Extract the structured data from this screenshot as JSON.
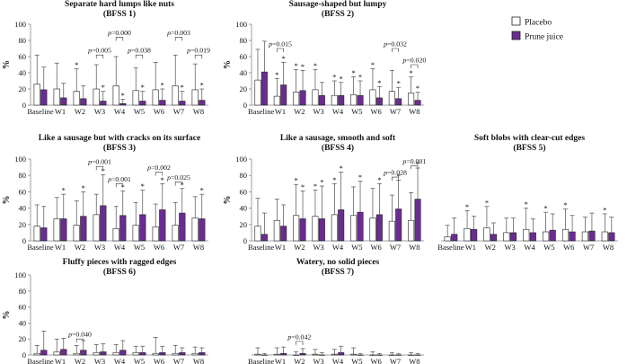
{
  "legend": {
    "placebo": "Placebo",
    "prune": "Prune juice"
  },
  "colors": {
    "placebo": "#ffffff",
    "prune": "#6b2c91",
    "stroke": "#222222",
    "axis": "#888888"
  },
  "chart_data": [
    {
      "type": "bar",
      "title": [
        "Separate hard lumps like nuts",
        "(BFSS 1)"
      ],
      "ylabel": "%",
      "ylim": [
        0,
        100
      ],
      "yticks": [
        0,
        20,
        40,
        60,
        80,
        100
      ],
      "categories": [
        "Baseline",
        "W1",
        "W2",
        "W3",
        "W4",
        "W5",
        "W6",
        "W7",
        "W8"
      ],
      "series": [
        {
          "name": "Placebo",
          "values": [
            26,
            20,
            17,
            20,
            24,
            18,
            19,
            24,
            19
          ],
          "errors": [
            36,
            32,
            28,
            30,
            36,
            28,
            34,
            38,
            32
          ]
        },
        {
          "name": "Prune juice",
          "values": [
            19,
            9,
            8,
            5,
            2,
            5,
            6,
            5,
            6
          ],
          "errors": [
            28,
            18,
            16,
            12,
            5,
            12,
            14,
            12,
            14
          ]
        }
      ],
      "stars": [
        {
          "index": 2,
          "series": 0
        },
        {
          "index": 3,
          "series": 1
        },
        {
          "index": 4,
          "series": 1
        },
        {
          "index": 5,
          "series": 1
        },
        {
          "index": 6,
          "series": 1
        },
        {
          "index": 7,
          "series": 1
        },
        {
          "index": 8,
          "series": 1
        }
      ],
      "pvalues": [
        {
          "index": 3,
          "text": "p=0.005",
          "height": 62
        },
        {
          "index": 4,
          "text": "p=0.000",
          "height": 84
        },
        {
          "index": 5,
          "text": "p=0.038",
          "height": 62
        },
        {
          "index": 7,
          "text": "p=0.003",
          "height": 84
        },
        {
          "index": 8,
          "text": "p=0.019",
          "height": 62
        }
      ]
    },
    {
      "type": "bar",
      "title": [
        "Sausage-shaped but lumpy",
        "(BFSS 2)"
      ],
      "ylabel": "%",
      "ylim": [
        0,
        100
      ],
      "yticks": [
        0,
        20,
        40,
        60,
        80,
        100
      ],
      "categories": [
        "Baseline",
        "W1",
        "W2",
        "W3",
        "W4",
        "W5",
        "W6",
        "W7",
        "W8"
      ],
      "series": [
        {
          "name": "Placebo",
          "values": [
            31,
            11,
            16,
            19,
            12,
            13,
            19,
            17,
            15
          ],
          "errors": [
            38,
            22,
            28,
            25,
            18,
            22,
            26,
            26,
            20
          ]
        },
        {
          "name": "Prune juice",
          "values": [
            41,
            25,
            18,
            12,
            12,
            12,
            9,
            8,
            6
          ],
          "errors": [
            38,
            28,
            25,
            16,
            16,
            18,
            14,
            14,
            10
          ]
        }
      ],
      "stars": [
        {
          "index": 1,
          "series": 0
        },
        {
          "index": 1,
          "series": 1
        },
        {
          "index": 2,
          "series": 0
        },
        {
          "index": 2,
          "series": 1
        },
        {
          "index": 3,
          "series": 0
        },
        {
          "index": 4,
          "series": 0
        },
        {
          "index": 4,
          "series": 1
        },
        {
          "index": 5,
          "series": 0
        },
        {
          "index": 5,
          "series": 1
        },
        {
          "index": 6,
          "series": 0
        },
        {
          "index": 6,
          "series": 1
        },
        {
          "index": 7,
          "series": 1
        },
        {
          "index": 8,
          "series": 0
        },
        {
          "index": 8,
          "series": 1
        }
      ],
      "pvalues": [
        {
          "index": 1,
          "text": "p=0.015",
          "height": 70
        },
        {
          "index": 7,
          "text": "p=0.032",
          "height": 70
        },
        {
          "index": 8,
          "text": "p=0.020",
          "height": 50
        }
      ]
    },
    {
      "type": "bar",
      "title": [
        "Like a sausage but with cracks on its surface",
        "(BFSS 3)"
      ],
      "ylabel": "%",
      "ylim": [
        0,
        100
      ],
      "yticks": [
        0,
        20,
        40,
        60,
        80,
        100
      ],
      "categories": [
        "Baseline",
        "W1",
        "W2",
        "W3",
        "W4",
        "W5",
        "W6",
        "W7",
        "W8"
      ],
      "series": [
        {
          "name": "Placebo",
          "values": [
            18,
            27,
            19,
            32,
            15,
            19,
            17,
            19,
            28
          ],
          "errors": [
            26,
            26,
            30,
            25,
            27,
            28,
            28,
            28,
            26
          ]
        },
        {
          "name": "Prune juice",
          "values": [
            16,
            27,
            30,
            43,
            31,
            32,
            38,
            34,
            27
          ],
          "errors": [
            26,
            30,
            30,
            38,
            30,
            30,
            32,
            30,
            30
          ]
        }
      ],
      "stars": [
        {
          "index": 1,
          "series": 1
        },
        {
          "index": 2,
          "series": 1
        },
        {
          "index": 3,
          "series": 1
        },
        {
          "index": 4,
          "series": 1
        },
        {
          "index": 5,
          "series": 1
        },
        {
          "index": 6,
          "series": 1
        },
        {
          "index": 7,
          "series": 1
        },
        {
          "index": 8,
          "series": 1
        }
      ],
      "pvalues": [
        {
          "index": 3,
          "text": "p=0.001",
          "height": 91
        },
        {
          "index": 4,
          "text": "p=0.001",
          "height": 70
        },
        {
          "index": 6,
          "text": "p=0.002",
          "height": 84
        },
        {
          "index": 7,
          "text": "p=0.025",
          "height": 72
        }
      ]
    },
    {
      "type": "bar",
      "title": [
        "Like a sausage, smooth and soft",
        "(BFSS 4)"
      ],
      "ylabel": "%",
      "ylim": [
        0,
        100
      ],
      "yticks": [
        0,
        20,
        40,
        60,
        80,
        100
      ],
      "categories": [
        "Baseline",
        "W1",
        "W2",
        "W3",
        "W4",
        "W5",
        "W6",
        "W7",
        "W8"
      ],
      "series": [
        {
          "name": "Placebo",
          "values": [
            18,
            25,
            31,
            30,
            32,
            31,
            28,
            24,
            25
          ],
          "errors": [
            34,
            26,
            38,
            32,
            38,
            35,
            36,
            32,
            34
          ]
        },
        {
          "name": "Prune juice",
          "values": [
            8,
            18,
            27,
            27,
            38,
            35,
            32,
            39,
            51
          ],
          "errors": [
            26,
            26,
            34,
            40,
            46,
            38,
            38,
            35,
            38
          ]
        }
      ],
      "stars": [
        {
          "index": 2,
          "series": 0
        },
        {
          "index": 2,
          "series": 1
        },
        {
          "index": 3,
          "series": 0
        },
        {
          "index": 3,
          "series": 1
        },
        {
          "index": 4,
          "series": 0
        },
        {
          "index": 4,
          "series": 1
        },
        {
          "index": 5,
          "series": 1
        },
        {
          "index": 6,
          "series": 1
        },
        {
          "index": 7,
          "series": 1
        },
        {
          "index": 8,
          "series": 1
        }
      ],
      "pvalues": [
        {
          "index": 7,
          "text": "p=0.028",
          "height": 78
        },
        {
          "index": 8,
          "text": "p=0.001",
          "height": 92
        }
      ]
    },
    {
      "type": "bar",
      "title": [
        "Soft blobs with clear-cut edges",
        "(BFSS 5)"
      ],
      "ylabel": "",
      "ylim": [
        0,
        100
      ],
      "yticks": [],
      "categories": [
        "Baseline",
        "W1",
        "W2",
        "W3",
        "W4",
        "W5",
        "W6",
        "W7",
        "W8"
      ],
      "series": [
        {
          "name": "Placebo",
          "values": [
            5,
            15,
            16,
            10,
            14,
            11,
            14,
            11,
            11
          ],
          "errors": [
            14,
            22,
            26,
            18,
            26,
            24,
            25,
            18,
            22
          ]
        },
        {
          "name": "Prune juice",
          "values": [
            8,
            14,
            8,
            10,
            10,
            13,
            11,
            12,
            10
          ],
          "errors": [
            20,
            16,
            14,
            18,
            17,
            20,
            20,
            22,
            19
          ]
        }
      ],
      "stars": [
        {
          "index": 1,
          "series": 0
        },
        {
          "index": 2,
          "series": 0
        },
        {
          "index": 4,
          "series": 0
        },
        {
          "index": 5,
          "series": 0
        },
        {
          "index": 6,
          "series": 0
        },
        {
          "index": 8,
          "series": 0
        }
      ],
      "pvalues": []
    },
    {
      "type": "bar",
      "title": [
        "Fluffy pieces with ragged edges",
        "(BFSS 6)"
      ],
      "ylabel": "%",
      "ylim": [
        0,
        100
      ],
      "yticks": [
        0,
        20,
        40,
        60,
        80,
        100
      ],
      "categories": [
        "Baseline",
        "W1",
        "W2",
        "W3",
        "W4",
        "W5",
        "W6",
        "W7",
        "W8"
      ],
      "series": [
        {
          "name": "Placebo",
          "values": [
            2,
            4,
            2,
            3,
            3,
            3,
            2,
            2,
            2
          ],
          "errors": [
            10,
            16,
            10,
            10,
            10,
            8,
            20,
            10,
            8
          ]
        },
        {
          "name": "Prune juice",
          "values": [
            6,
            7,
            6,
            4,
            6,
            3,
            3,
            3,
            3
          ],
          "errors": [
            24,
            14,
            12,
            10,
            12,
            8,
            8,
            6,
            6
          ]
        }
      ],
      "stars": [],
      "pvalues": [
        {
          "index": 2,
          "text": "p=0.040",
          "height": 20
        }
      ]
    },
    {
      "type": "bar",
      "title": [
        "Watery, no solid pieces",
        "(BFSS 7)"
      ],
      "ylabel": "",
      "ylim": [
        0,
        100
      ],
      "yticks": [],
      "categories": [
        "Baseline",
        "W1",
        "W2",
        "W3",
        "W4",
        "W5",
        "W6",
        "W7",
        "W8"
      ],
      "series": [
        {
          "name": "Placebo",
          "values": [
            1,
            1,
            0,
            1,
            1,
            1,
            0,
            0,
            0
          ],
          "errors": [
            8,
            8,
            4,
            6,
            6,
            8,
            4,
            3,
            3
          ]
        },
        {
          "name": "Prune juice",
          "values": [
            0,
            2,
            2,
            0,
            3,
            0,
            0,
            0,
            0
          ],
          "errors": [
            2,
            8,
            6,
            3,
            8,
            2,
            2,
            2,
            2
          ]
        }
      ],
      "stars": [],
      "pvalues": [
        {
          "index": 2,
          "text": "p=0.042",
          "height": 17
        }
      ]
    }
  ]
}
